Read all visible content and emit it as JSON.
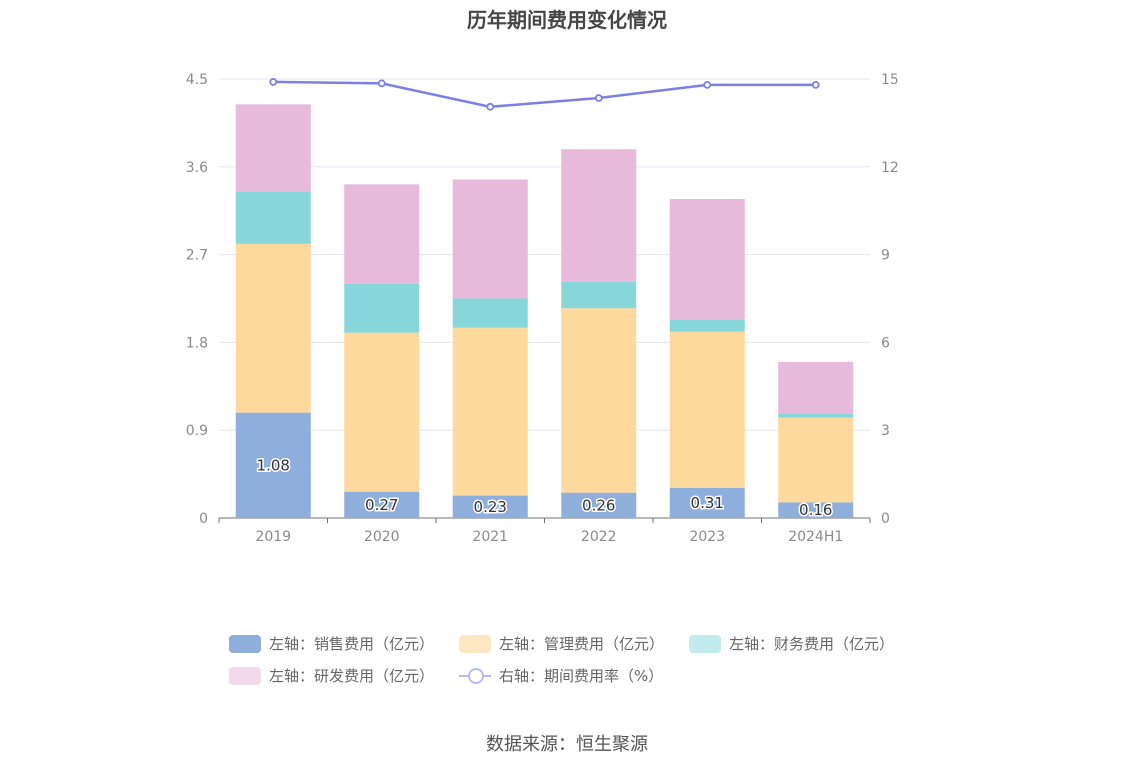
{
  "title": "历年期间费用变化情况",
  "source": "数据来源：恒生聚源",
  "chart_data": {
    "type": "bar",
    "stacked": true,
    "categories": [
      "2019",
      "2020",
      "2021",
      "2022",
      "2023",
      "2024H1"
    ],
    "series": [
      {
        "name": "左轴：销售费用（亿元）",
        "axis": "left",
        "color": "#8eaedc",
        "values": [
          1.08,
          0.27,
          0.23,
          0.26,
          0.31,
          0.16
        ],
        "labels": [
          "1.08",
          "0.27",
          "0.23",
          "0.26",
          "0.31",
          "0.16"
        ]
      },
      {
        "name": "左轴：管理费用（亿元）",
        "axis": "left",
        "color": "#fdd99d",
        "values": [
          1.73,
          1.63,
          1.72,
          1.89,
          1.6,
          0.87
        ]
      },
      {
        "name": "左轴：财务费用（亿元）",
        "axis": "left",
        "color": "#87d6d9",
        "values": [
          0.54,
          0.5,
          0.3,
          0.27,
          0.12,
          0.04
        ]
      },
      {
        "name": "左轴：研发费用（亿元）",
        "axis": "left",
        "color": "#e7b9da",
        "values": [
          0.89,
          1.02,
          1.22,
          1.36,
          1.24,
          0.53
        ]
      },
      {
        "name": "右轴：期间费用率（%）",
        "axis": "right",
        "type": "line",
        "color": "#7b7fe6",
        "values": [
          14.9,
          14.85,
          14.05,
          14.35,
          14.8,
          14.8
        ]
      }
    ],
    "left_axis": {
      "min": 0,
      "max": 4.5,
      "ticks": [
        "0",
        "0.9",
        "1.8",
        "2.7",
        "3.6",
        "4.5"
      ]
    },
    "right_axis": {
      "min": 0,
      "max": 15,
      "ticks": [
        "0",
        "3",
        "6",
        "9",
        "12",
        "15"
      ]
    },
    "grid": true,
    "legend_position": "bottom"
  },
  "legend_light_colors": [
    "#8eaedc",
    "#fde8c4",
    "#c2ebed",
    "#f3d9ec",
    "#b8bbf2"
  ]
}
